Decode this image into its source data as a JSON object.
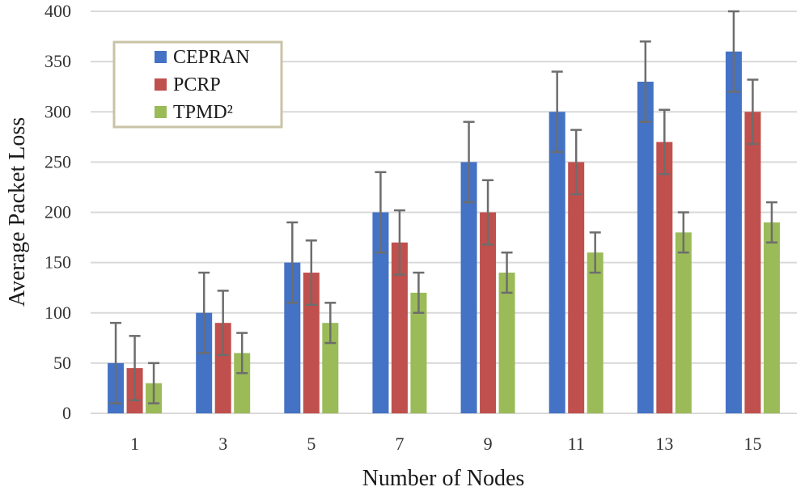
{
  "chart_data": {
    "type": "bar",
    "title": "",
    "xlabel": "Number of Nodes",
    "ylabel": "Average Packet Loss",
    "categories": [
      "1",
      "3",
      "5",
      "7",
      "9",
      "11",
      "13",
      "15"
    ],
    "ylim": [
      0,
      400
    ],
    "yticks": [
      0,
      50,
      100,
      150,
      200,
      250,
      300,
      350,
      400
    ],
    "grid": true,
    "legend_position": "top-left",
    "series": [
      {
        "name": "CEPRAN",
        "color": "#4472C4",
        "values": [
          50,
          100,
          150,
          200,
          250,
          300,
          330,
          360
        ],
        "error": [
          40,
          40,
          40,
          40,
          40,
          40,
          40,
          40
        ]
      },
      {
        "name": "PCRP",
        "color": "#C0504D",
        "values": [
          45,
          90,
          140,
          170,
          200,
          250,
          270,
          300
        ],
        "error": [
          32,
          32,
          32,
          32,
          32,
          32,
          32,
          32
        ]
      },
      {
        "name": "TPMD²",
        "color": "#9BBB59",
        "values": [
          30,
          60,
          90,
          120,
          140,
          160,
          180,
          190
        ],
        "error": [
          20,
          20,
          20,
          20,
          20,
          20,
          20,
          20
        ]
      }
    ],
    "error_bar_color": "#6d6d6d",
    "grid_color": "#d9d9d9",
    "legend_border_color": "#c9c3a6"
  }
}
